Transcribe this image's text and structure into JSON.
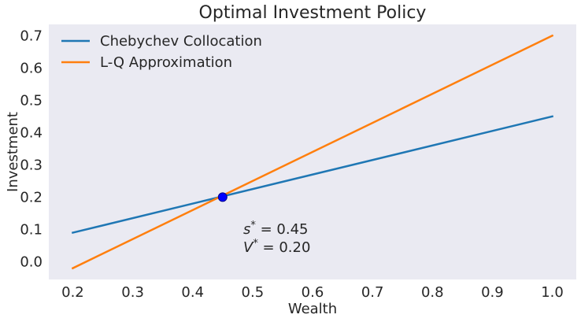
{
  "chart_data": {
    "type": "line",
    "title": "Optimal Investment Policy",
    "xlabel": "Wealth",
    "ylabel": "Investment",
    "xlim": [
      0.16,
      1.04
    ],
    "ylim": [
      -0.055,
      0.735
    ],
    "xticks": [
      0.2,
      0.3,
      0.4,
      0.5,
      0.6,
      0.7,
      0.8,
      0.9,
      1.0
    ],
    "xtick_labels": [
      "0.2",
      "0.3",
      "0.4",
      "0.5",
      "0.6",
      "0.7",
      "0.8",
      "0.9",
      "1.0"
    ],
    "yticks": [
      0.0,
      0.1,
      0.2,
      0.3,
      0.4,
      0.5,
      0.6,
      0.7
    ],
    "ytick_labels": [
      "0.0",
      "0.1",
      "0.2",
      "0.3",
      "0.4",
      "0.5",
      "0.6",
      "0.7"
    ],
    "grid": false,
    "legend_position": "upper-left",
    "background_color": "#eaeaf2",
    "series": [
      {
        "name": "Chebychev Collocation",
        "color": "#1f77b4",
        "x": [
          0.2,
          1.0
        ],
        "y": [
          0.09,
          0.45
        ]
      },
      {
        "name": "L-Q Approximation",
        "color": "#ff7f0e",
        "x": [
          0.2,
          1.0
        ],
        "y": [
          -0.02,
          0.7
        ]
      }
    ],
    "points": [
      {
        "x": 0.45,
        "y": 0.2,
        "color": "#0000ff",
        "edge_color": "#00008b"
      }
    ],
    "annotations": [
      {
        "italic": "s",
        "sup": "*",
        "value": " = 0.45"
      },
      {
        "italic": "V",
        "sup": "*",
        "value": " = 0.20"
      }
    ]
  }
}
